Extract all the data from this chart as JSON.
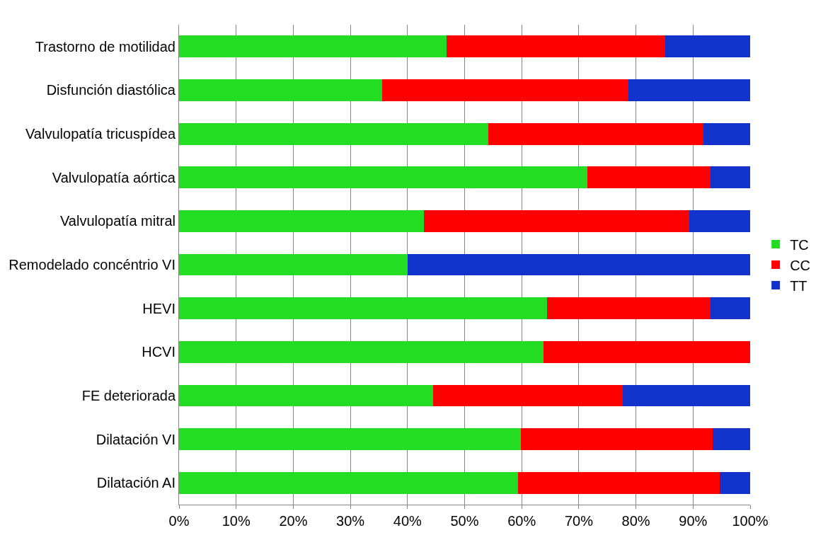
{
  "chart_data": {
    "type": "bar",
    "orientation": "horizontal",
    "stacked": true,
    "categories": [
      "Trastorno de motilidad",
      "Disfunción diastólica",
      "Valvulopatía tricuspídea",
      "Valvulopatía aórtica",
      "Valvulopatía mitral",
      "Remodelado concéntrio VI",
      "HEVI",
      "HCVI",
      "FE deteriorada",
      "Dilatación VI",
      "Dilatación AI"
    ],
    "series": [
      {
        "name": "TC",
        "color": "#22dd22",
        "values": [
          46.8,
          35.6,
          54.2,
          71.5,
          42.9,
          40,
          64.4,
          63.8,
          44.5,
          59.9,
          59.4
        ]
      },
      {
        "name": "CC",
        "color": "#ff0000",
        "values": [
          38.3,
          43.1,
          37.6,
          21.5,
          46.4,
          0,
          28.6,
          36.2,
          33.2,
          33.5,
          35.3
        ]
      },
      {
        "name": "TT",
        "color": "#1133cc",
        "values": [
          14.9,
          21.3,
          8.2,
          7,
          10.7,
          60,
          7,
          0,
          22.3,
          6.6,
          5.3
        ]
      }
    ],
    "xlim": [
      0,
      100
    ],
    "xticks": [
      {
        "value": 0,
        "label": "0%"
      },
      {
        "value": 10,
        "label": "10%"
      },
      {
        "value": 20,
        "label": "20%"
      },
      {
        "value": 30,
        "label": "30%"
      },
      {
        "value": 40,
        "label": "40%"
      },
      {
        "value": 50,
        "label": "50%"
      },
      {
        "value": 60,
        "label": "60%"
      },
      {
        "value": 70,
        "label": "70%"
      },
      {
        "value": 80,
        "label": "80%"
      },
      {
        "value": 90,
        "label": "90%"
      },
      {
        "value": 100,
        "label": "100%"
      }
    ],
    "grid": "x",
    "legend": "right"
  }
}
